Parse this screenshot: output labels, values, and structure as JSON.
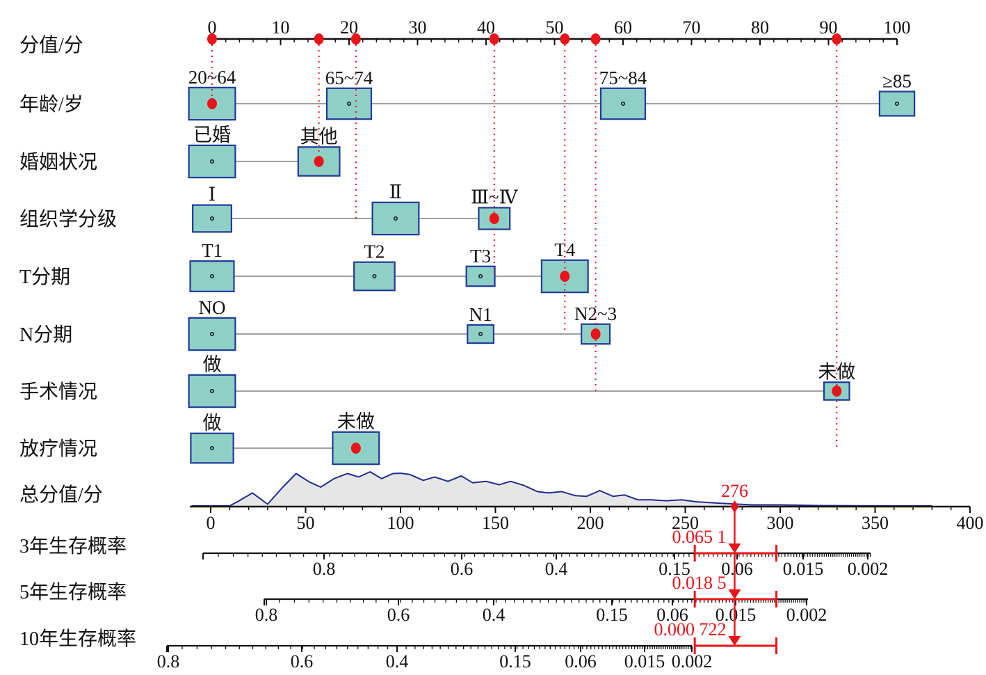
{
  "chart_data": {
    "type": "nomogram",
    "title": "",
    "points_axis": {
      "label": "分值/分",
      "range": [
        0,
        100
      ],
      "major_ticks": [
        0,
        10,
        20,
        30,
        40,
        50,
        60,
        70,
        80,
        90,
        100
      ]
    },
    "variables": [
      {
        "label": "年龄/岁",
        "levels": [
          {
            "name": "20~64",
            "points": 0,
            "size": 0.85,
            "selected": true
          },
          {
            "name": "65~74",
            "points": 20,
            "size": 0.8,
            "selected": false
          },
          {
            "name": "75~84",
            "points": 60,
            "size": 0.8,
            "selected": false
          },
          {
            "name": "≥85",
            "points": 100,
            "size": 0.55,
            "selected": false
          }
        ]
      },
      {
        "label": "婚姻状况",
        "levels": [
          {
            "name": "已婚",
            "points": 0,
            "size": 0.85,
            "selected": false
          },
          {
            "name": "其他",
            "points": 15.6,
            "size": 0.72,
            "selected": true
          }
        ]
      },
      {
        "label": "组织学分级",
        "levels": [
          {
            "name": "Ⅰ",
            "points": 0,
            "size": 0.65,
            "selected": false
          },
          {
            "name": "Ⅱ",
            "points": 26.8,
            "size": 0.85,
            "selected": false
          },
          {
            "name": "Ⅲ~Ⅳ",
            "points": 41.2,
            "size": 0.45,
            "selected": true
          }
        ]
      },
      {
        "label": "T分期",
        "levels": [
          {
            "name": "T1",
            "points": 0,
            "size": 0.78,
            "selected": false
          },
          {
            "name": "T2",
            "points": 23.7,
            "size": 0.7,
            "selected": false
          },
          {
            "name": "T3",
            "points": 39.2,
            "size": 0.38,
            "selected": false
          },
          {
            "name": "T4",
            "points": 51.5,
            "size": 0.85,
            "selected": true
          }
        ]
      },
      {
        "label": "N分期",
        "levels": [
          {
            "name": "NO",
            "points": 0,
            "size": 0.85,
            "selected": false
          },
          {
            "name": "N1",
            "points": 39.2,
            "size": 0.32,
            "selected": false
          },
          {
            "name": "N2~3",
            "points": 56,
            "size": 0.38,
            "selected": true
          }
        ]
      },
      {
        "label": "手术情况",
        "levels": [
          {
            "name": "做",
            "points": 0,
            "size": 0.85,
            "selected": false
          },
          {
            "name": "未做",
            "points": 91.2,
            "size": 0.3,
            "selected": true
          }
        ]
      },
      {
        "label": "放疗情况",
        "levels": [
          {
            "name": "做",
            "points": 0,
            "size": 0.75,
            "selected": false
          },
          {
            "name": "未做",
            "points": 21,
            "size": 0.85,
            "selected": true
          }
        ]
      }
    ],
    "selected_points": [
      0,
      15.6,
      21,
      41.2,
      51.5,
      56,
      91.2
    ],
    "total_points_axis": {
      "label": "总分值/分",
      "range": [
        0,
        400
      ],
      "major_ticks": [
        0,
        50,
        100,
        150,
        200,
        250,
        300,
        350,
        400
      ]
    },
    "total_points_value": 276,
    "total_points_value_label": "276",
    "density": {
      "x": [
        -10,
        10,
        15,
        22,
        30,
        38,
        45,
        52,
        58,
        65,
        72,
        78,
        84,
        90,
        96,
        100,
        105,
        112,
        118,
        125,
        132,
        138,
        145,
        152,
        158,
        165,
        172,
        178,
        185,
        192,
        198,
        205,
        212,
        218,
        225,
        232,
        240,
        248,
        256,
        262,
        268,
        275,
        285,
        300,
        320,
        340,
        360,
        380
      ],
      "y": [
        0,
        0,
        0.15,
        0.38,
        0.05,
        0.55,
        0.95,
        0.7,
        0.55,
        0.8,
        0.95,
        0.85,
        1.0,
        0.8,
        0.95,
        0.96,
        0.92,
        0.75,
        0.85,
        0.72,
        0.88,
        0.68,
        0.72,
        0.62,
        0.72,
        0.6,
        0.42,
        0.38,
        0.42,
        0.3,
        0.28,
        0.45,
        0.28,
        0.32,
        0.18,
        0.18,
        0.15,
        0.18,
        0.12,
        0.1,
        0.08,
        0.06,
        0.03,
        0.03,
        0.01,
        0.005,
        0,
        0
      ]
    },
    "survival_axes": [
      {
        "label": "3年生存概率",
        "tick_labels": [
          "0.8",
          "0.6",
          "0.4",
          "0.15",
          "0.06",
          "0.015",
          "0.002"
        ],
        "predicted_label": "0.065 1",
        "predicted": 0.0651
      },
      {
        "label": "5年生存概率",
        "tick_labels": [
          "0.8",
          "0.6",
          "0.4",
          "0.15",
          "0.06",
          "0.015",
          "0.002"
        ],
        "predicted_label": "0.018 5",
        "predicted": 0.0185
      },
      {
        "label": "10年生存概率",
        "tick_labels": [
          "0.8",
          "0.6",
          "0.4",
          "0.15",
          "0.06",
          "0.015",
          "0.002"
        ],
        "predicted_label": "0.000 722",
        "predicted": 0.000722
      }
    ],
    "confidence_interval_total_points": [
      255,
      298
    ],
    "colors": {
      "box_fill": "#8fd0c6",
      "box_stroke": "#1f3a9a",
      "highlight": "#e8141a",
      "density_fill": "#e6e6e6",
      "density_line": "#1f2d8f",
      "connector": "#a0a0a0"
    }
  }
}
